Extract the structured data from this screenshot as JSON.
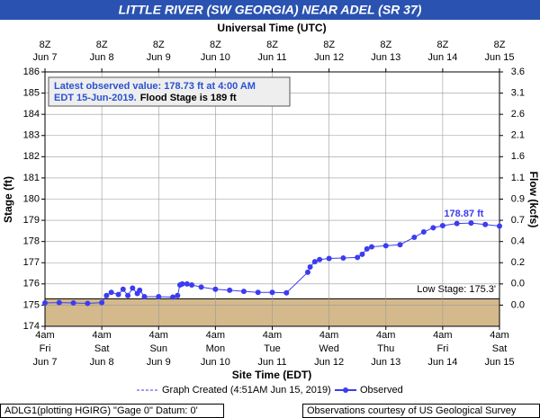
{
  "chart_data": {
    "type": "line",
    "title": "LITTLE RIVER (SW GEORGIA) NEAR ADEL (SR 37)",
    "top_axis_title": "Universal Time (UTC)",
    "x_axis_title": "Site Time (EDT)",
    "y_axis_title": "Stage (ft)",
    "y2_axis_title": "Flow (kcfs)",
    "xlim": [
      "2019-06-07T04:00",
      "2019-06-15T04:00"
    ],
    "xticks": [
      {
        "value": "2019-06-07T04:00",
        "label": [
          "4am",
          "Fri",
          "Jun 7"
        ],
        "top_label": [
          "8Z",
          "Jun 7"
        ]
      },
      {
        "value": "2019-06-08T04:00",
        "label": [
          "4am",
          "Sat",
          "Jun 8"
        ],
        "top_label": [
          "8Z",
          "Jun 8"
        ]
      },
      {
        "value": "2019-06-09T04:00",
        "label": [
          "4am",
          "Sun",
          "Jun 9"
        ],
        "top_label": [
          "8Z",
          "Jun 9"
        ]
      },
      {
        "value": "2019-06-10T04:00",
        "label": [
          "4am",
          "Mon",
          "Jun 10"
        ],
        "top_label": [
          "8Z",
          "Jun 10"
        ]
      },
      {
        "value": "2019-06-11T04:00",
        "label": [
          "4am",
          "Tue",
          "Jun 11"
        ],
        "top_label": [
          "8Z",
          "Jun 11"
        ]
      },
      {
        "value": "2019-06-12T04:00",
        "label": [
          "4am",
          "Wed",
          "Jun 12"
        ],
        "top_label": [
          "8Z",
          "Jun 12"
        ]
      },
      {
        "value": "2019-06-13T04:00",
        "label": [
          "4am",
          "Thu",
          "Jun 13"
        ],
        "top_label": [
          "8Z",
          "Jun 13"
        ]
      },
      {
        "value": "2019-06-14T04:00",
        "label": [
          "4am",
          "Fri",
          "Jun 14"
        ],
        "top_label": [
          "8Z",
          "Jun 14"
        ]
      },
      {
        "value": "2019-06-15T04:00",
        "label": [
          "4am",
          "Sat",
          "Jun 15"
        ],
        "top_label": [
          "8Z",
          "Jun 15"
        ]
      }
    ],
    "ylim": [
      174,
      186
    ],
    "yticks": [
      174,
      175,
      176,
      177,
      178,
      179,
      180,
      181,
      182,
      183,
      184,
      185,
      186
    ],
    "y2_tick_labels": [
      null,
      "0.0",
      "0.0",
      "0.2",
      "0.4",
      "0.7",
      "0.9",
      "1.1",
      "1.6",
      "2.1",
      "2.6",
      "3.1",
      "3.6"
    ],
    "grid": true,
    "low_stage": {
      "value": 175.3,
      "label": "Low Stage: 175.3'",
      "color": "#d4b98c"
    },
    "peak_label": "178.87 ft",
    "stats_box": {
      "line1": "Latest observed value: 178.73 ft at 4:00 AM",
      "line2": "EDT 15-Jun-2019.",
      "flood_stage": "Flood Stage is 189 ft"
    },
    "legend": {
      "created": "Graph Created (4:51AM Jun 15, 2019)"
    },
    "footer": {
      "left": "ADLG1(plotting HGIRG) \"Gage 0\" Datum: 0'",
      "right": "Observations courtesy of US Geological Survey"
    },
    "series": [
      {
        "name": "Observed",
        "color": "#3c3cf0",
        "x": [
          "2019-06-07T04:00",
          "2019-06-07T10:00",
          "2019-06-07T16:00",
          "2019-06-07T22:00",
          "2019-06-08T04:00",
          "2019-06-08T06:00",
          "2019-06-08T08:00",
          "2019-06-08T11:00",
          "2019-06-08T13:00",
          "2019-06-08T15:00",
          "2019-06-08T17:00",
          "2019-06-08T19:00",
          "2019-06-08T20:00",
          "2019-06-08T22:00",
          "2019-06-09T04:00",
          "2019-06-09T10:00",
          "2019-06-09T12:00",
          "2019-06-09T13:00",
          "2019-06-09T14:00",
          "2019-06-09T16:00",
          "2019-06-09T18:00",
          "2019-06-09T22:00",
          "2019-06-10T04:00",
          "2019-06-10T10:00",
          "2019-06-10T16:00",
          "2019-06-10T22:00",
          "2019-06-11T04:00",
          "2019-06-11T10:00",
          "2019-06-11T19:00",
          "2019-06-11T20:00",
          "2019-06-11T22:00",
          "2019-06-12T00:00",
          "2019-06-12T04:00",
          "2019-06-12T10:00",
          "2019-06-12T16:00",
          "2019-06-12T18:00",
          "2019-06-12T20:00",
          "2019-06-12T22:00",
          "2019-06-13T04:00",
          "2019-06-13T10:00",
          "2019-06-13T16:00",
          "2019-06-13T20:00",
          "2019-06-14T00:00",
          "2019-06-14T04:00",
          "2019-06-14T10:00",
          "2019-06-14T16:00",
          "2019-06-14T22:00",
          "2019-06-15T04:00"
        ],
        "values": [
          175.1,
          175.12,
          175.1,
          175.08,
          175.12,
          175.45,
          175.6,
          175.5,
          175.75,
          175.45,
          175.8,
          175.55,
          175.7,
          175.4,
          175.4,
          175.38,
          175.45,
          175.95,
          176.0,
          176.0,
          175.95,
          175.85,
          175.75,
          175.7,
          175.65,
          175.6,
          175.6,
          175.58,
          176.55,
          176.8,
          177.05,
          177.15,
          177.2,
          177.22,
          177.25,
          177.4,
          177.65,
          177.75,
          177.8,
          177.85,
          178.2,
          178.45,
          178.65,
          178.75,
          178.85,
          178.87,
          178.8,
          178.73
        ]
      }
    ]
  }
}
